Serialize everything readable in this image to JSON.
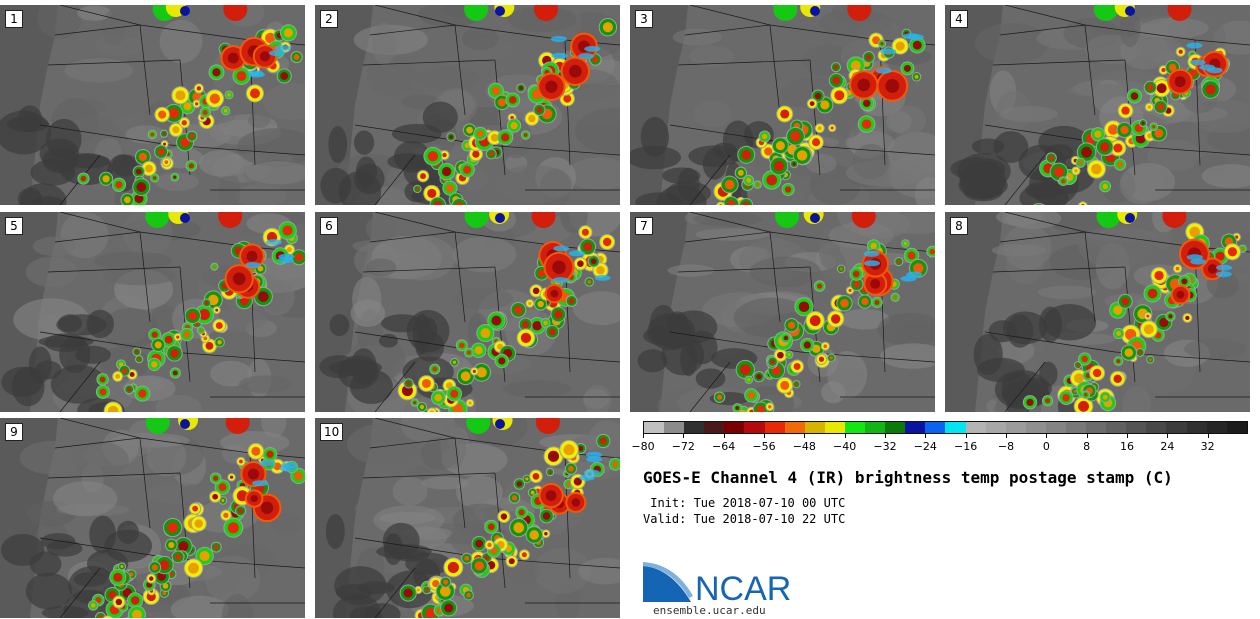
{
  "panels": [
    {
      "label": "1",
      "seed": 11
    },
    {
      "label": "2",
      "seed": 23
    },
    {
      "label": "3",
      "seed": 37
    },
    {
      "label": "4",
      "seed": 41
    },
    {
      "label": "5",
      "seed": 53
    },
    {
      "label": "6",
      "seed": 67
    },
    {
      "label": "7",
      "seed": 71
    },
    {
      "label": "8",
      "seed": 83
    },
    {
      "label": "9",
      "seed": 97
    },
    {
      "label": "10",
      "seed": 101
    }
  ],
  "colorbar": {
    "colors": [
      "#c0c0c0",
      "#8c8c8c",
      "#303030",
      "#4a1a1a",
      "#7a0000",
      "#b40a0a",
      "#e8280a",
      "#f06a0a",
      "#d8b400",
      "#e8e800",
      "#14e614",
      "#14b414",
      "#0a7a0a",
      "#0a14a0",
      "#0a64f0",
      "#00e6f0",
      "#b4b4b4",
      "#a8a8a8",
      "#9c9c9c",
      "#909090",
      "#848484",
      "#787878",
      "#6c6c6c",
      "#606060",
      "#545454",
      "#484848",
      "#3c3c3c",
      "#303030",
      "#262626",
      "#1c1c1c"
    ],
    "min": -80,
    "max": 40,
    "ticks": [
      "−80",
      "−72",
      "−64",
      "−56",
      "−48",
      "−40",
      "−32",
      "−24",
      "−16",
      "−8",
      "0",
      "8",
      "16",
      "24",
      "32"
    ],
    "tick_values": [
      -80,
      -72,
      -64,
      -56,
      -48,
      -40,
      -32,
      -24,
      -16,
      -8,
      0,
      8,
      16,
      24,
      32
    ]
  },
  "title": "GOES-E Channel 4 (IR) brightness temp postage stamp (C)",
  "init": " Init: Tue 2018-07-10 00 UTC",
  "valid": "Valid: Tue 2018-07-10 22 UTC",
  "logo": {
    "text": "NCAR",
    "url": "ensemble.ucar.edu"
  }
}
